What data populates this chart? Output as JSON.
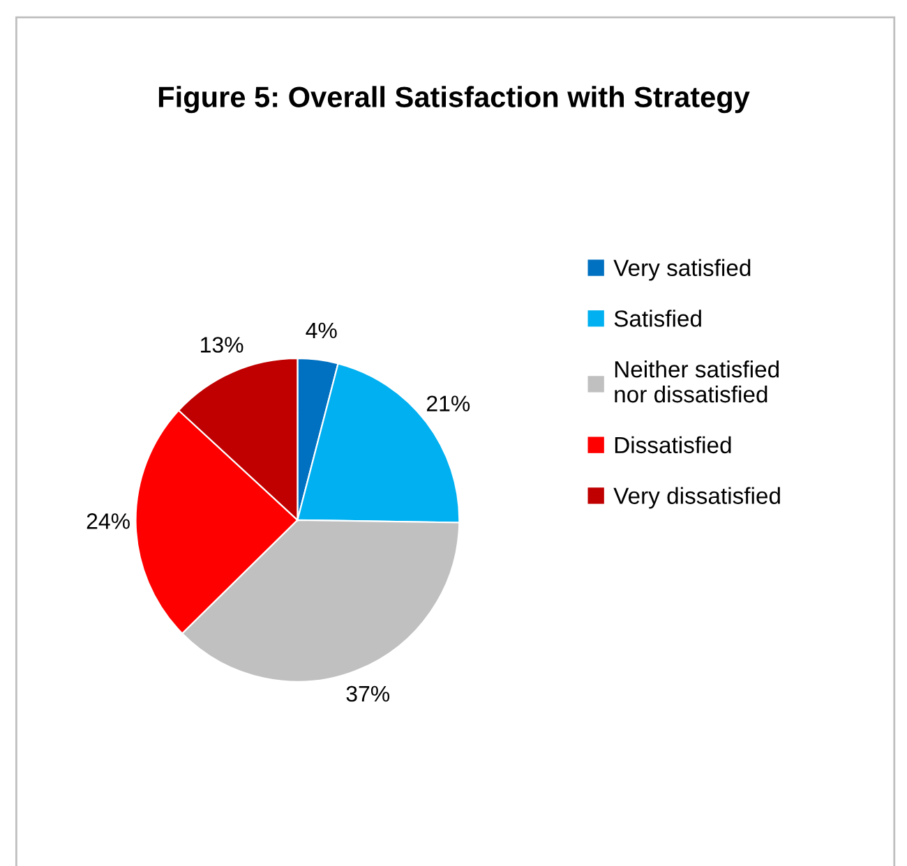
{
  "chart_data": {
    "type": "pie",
    "title": "Figure 5: Overall Satisfaction with Strategy",
    "categories": [
      "Very satisfied",
      "Satisfied",
      "Neither satisfied nor dissatisfied",
      "Dissatisfied",
      "Very dissatisfied"
    ],
    "values": [
      4,
      21,
      37,
      24,
      13
    ],
    "colors": [
      "#0070c0",
      "#00b0f0",
      "#c0c0c0",
      "#ff0000",
      "#c00000"
    ],
    "value_labels": [
      "4%",
      "21%",
      "37%",
      "24%",
      "13%"
    ],
    "legend": "right"
  }
}
